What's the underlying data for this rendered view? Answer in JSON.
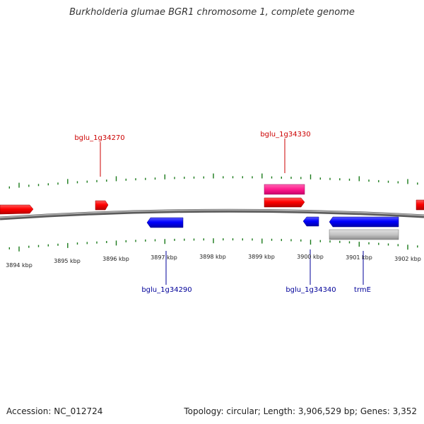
{
  "title": "Burkholderia glumae BGR1 chromosome 1, complete genome",
  "footer": {
    "accession": "Accession: NC_012724",
    "summary": "Topology: circular; Length: 3,906,529 bp; Genes: 3,352"
  },
  "colors": {
    "backbone": "#808080",
    "tick": "#1a7a1a",
    "forward_gene": "#ff0000",
    "reverse_gene": "#0000ff",
    "forward_label": "#cc0000",
    "reverse_label": "#000099",
    "pseudo_feature": "#ff1a8c",
    "rna_feature": "#c0c0c0"
  },
  "axis": {
    "ticks": [
      {
        "label": "3894 kbp"
      },
      {
        "label": "3895 kbp"
      },
      {
        "label": "3896 kbp"
      },
      {
        "label": "3897 kbp"
      },
      {
        "label": "3898 kbp"
      },
      {
        "label": "3899 kbp"
      },
      {
        "label": "3900 kbp"
      },
      {
        "label": "3901 kbp"
      },
      {
        "label": "3902 kbp"
      }
    ]
  },
  "gene_labels": [
    {
      "text": "bglu_1g34270",
      "strand": "forward"
    },
    {
      "text": "bglu_1g34330",
      "strand": "forward"
    },
    {
      "text": "bglu_1g34290",
      "strand": "reverse"
    },
    {
      "text": "bglu_1g34340",
      "strand": "reverse"
    },
    {
      "text": "trmE",
      "strand": "reverse"
    }
  ]
}
